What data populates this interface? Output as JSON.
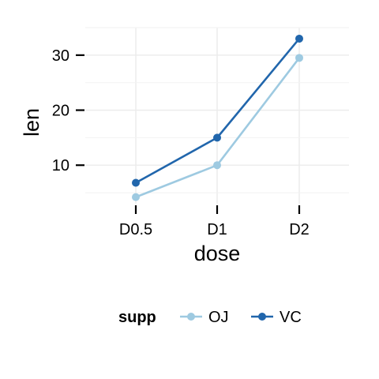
{
  "chart_data": {
    "type": "line",
    "xlabel": "dose",
    "ylabel": "len",
    "categories": [
      "D0.5",
      "D1",
      "D2"
    ],
    "ylim": [
      3,
      35
    ],
    "yticks": [
      10,
      20,
      30
    ],
    "grid": true,
    "legend": {
      "title": "supp",
      "position": "bottom"
    },
    "series": [
      {
        "name": "OJ",
        "values": [
          4.2,
          10.0,
          29.5
        ],
        "color": "#9ECAE1"
      },
      {
        "name": "VC",
        "values": [
          6.8,
          15.0,
          33.0
        ],
        "color": "#2166AC"
      }
    ]
  }
}
